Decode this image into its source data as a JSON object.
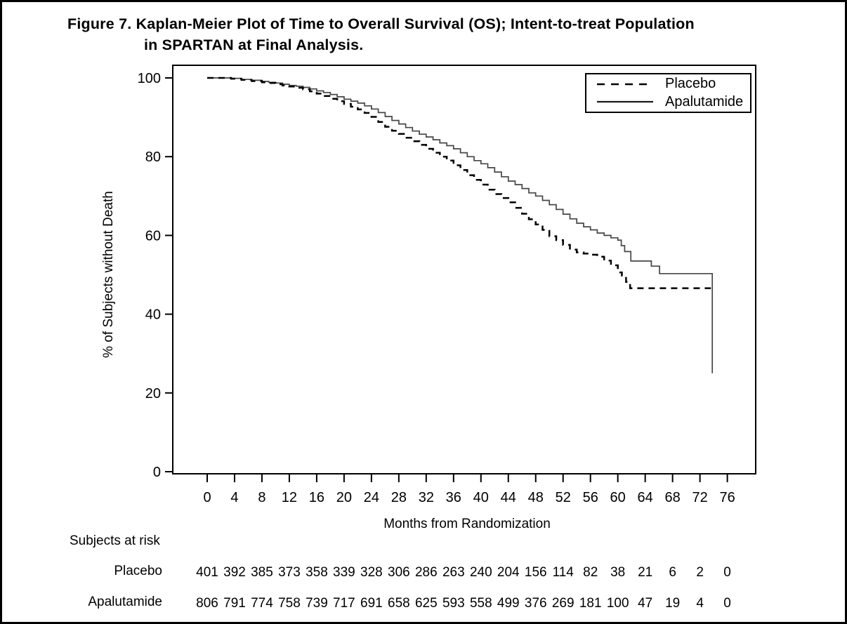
{
  "figure": {
    "title_line1": "Figure 7. Kaplan-Meier Plot of Time to Overall Survival (OS); Intent-to-treat Population",
    "title_line2": "in SPARTAN at Final Analysis."
  },
  "colors": {
    "background": "#ffffff",
    "frame": "#000000",
    "text": "#000000",
    "curve_apalutamide": "#464646",
    "curve_placebo": "#000000"
  },
  "chart_data": {
    "type": "line",
    "subtype": "kaplan-meier-step",
    "title": "Figure 7. Kaplan-Meier Plot of Time to Overall Survival (OS); Intent-to-treat Population in SPARTAN at Final Analysis.",
    "xlabel": "Months from Randomization",
    "ylabel": "% of Subjects without Death",
    "xlim": [
      0,
      76
    ],
    "ylim": [
      0,
      100
    ],
    "xticks": [
      0,
      4,
      8,
      12,
      16,
      20,
      24,
      28,
      32,
      36,
      40,
      44,
      48,
      52,
      56,
      60,
      64,
      68,
      72,
      76
    ],
    "yticks": [
      0,
      20,
      40,
      60,
      80,
      100
    ],
    "grid": false,
    "legend": {
      "position": "top-right",
      "entries": [
        {
          "label": "Placebo",
          "style": "dashed"
        },
        {
          "label": "Apalutamide",
          "style": "solid"
        }
      ]
    },
    "series": [
      {
        "name": "Apalutamide",
        "line_style": "solid",
        "points": [
          [
            0,
            100
          ],
          [
            3.5,
            99.9
          ],
          [
            5,
            99.6
          ],
          [
            6.5,
            99.4
          ],
          [
            8,
            99.1
          ],
          [
            9,
            98.9
          ],
          [
            10,
            98.7
          ],
          [
            11,
            98.4
          ],
          [
            12,
            98.1
          ],
          [
            13,
            97.9
          ],
          [
            14,
            97.6
          ],
          [
            15,
            97.2
          ],
          [
            16,
            96.7
          ],
          [
            17,
            96.3
          ],
          [
            18,
            95.8
          ],
          [
            19,
            95.2
          ],
          [
            20,
            94.6
          ],
          [
            21,
            94.1
          ],
          [
            22,
            93.6
          ],
          [
            23,
            92.9
          ],
          [
            24,
            92.1
          ],
          [
            25,
            91.2
          ],
          [
            26,
            90.2
          ],
          [
            27,
            89.2
          ],
          [
            28,
            88.3
          ],
          [
            29,
            87.4
          ],
          [
            30,
            86.5
          ],
          [
            31,
            85.7
          ],
          [
            32,
            85.0
          ],
          [
            33,
            84.3
          ],
          [
            34,
            83.5
          ],
          [
            35,
            82.8
          ],
          [
            36,
            82.0
          ],
          [
            37,
            81.0
          ],
          [
            38,
            80.0
          ],
          [
            39,
            79.0
          ],
          [
            40,
            78.2
          ],
          [
            41,
            77.2
          ],
          [
            42,
            76.1
          ],
          [
            43,
            74.9
          ],
          [
            44,
            73.8
          ],
          [
            45,
            72.9
          ],
          [
            46,
            71.9
          ],
          [
            47,
            70.8
          ],
          [
            48,
            70.0
          ],
          [
            49,
            68.9
          ],
          [
            50,
            67.8
          ],
          [
            51,
            66.6
          ],
          [
            52,
            65.4
          ],
          [
            53,
            64.2
          ],
          [
            54,
            63.1
          ],
          [
            55,
            62.2
          ],
          [
            56,
            61.4
          ],
          [
            57,
            60.6
          ],
          [
            58,
            60.0
          ],
          [
            59,
            59.4
          ],
          [
            60,
            58.8
          ],
          [
            60.5,
            57.4
          ],
          [
            61,
            55.9
          ],
          [
            61.9,
            53.5
          ],
          [
            64.9,
            52.2
          ],
          [
            66.1,
            50.3
          ],
          [
            73.8,
            25.0
          ]
        ]
      },
      {
        "name": "Placebo",
        "line_style": "dashed",
        "points": [
          [
            0,
            100
          ],
          [
            3.5,
            99.8
          ],
          [
            5,
            99.5
          ],
          [
            6.5,
            99.2
          ],
          [
            8,
            98.9
          ],
          [
            9,
            98.7
          ],
          [
            10,
            98.4
          ],
          [
            11,
            98.1
          ],
          [
            12,
            97.8
          ],
          [
            13,
            97.5
          ],
          [
            14,
            97.1
          ],
          [
            15,
            96.6
          ],
          [
            16,
            96.0
          ],
          [
            17,
            95.4
          ],
          [
            18,
            94.7
          ],
          [
            19,
            94.1
          ],
          [
            20,
            93.4
          ],
          [
            21,
            92.7
          ],
          [
            22,
            92.0
          ],
          [
            23,
            91.1
          ],
          [
            24,
            90.1
          ],
          [
            25,
            88.8
          ],
          [
            26,
            87.6
          ],
          [
            27,
            86.6
          ],
          [
            28,
            85.8
          ],
          [
            29,
            84.8
          ],
          [
            30,
            83.9
          ],
          [
            31,
            83.0
          ],
          [
            32,
            82.0
          ],
          [
            33,
            81.0
          ],
          [
            34,
            80.0
          ],
          [
            35,
            79.0
          ],
          [
            36,
            77.8
          ],
          [
            37,
            76.6
          ],
          [
            38,
            75.3
          ],
          [
            39,
            74.1
          ],
          [
            40,
            72.9
          ],
          [
            41,
            71.6
          ],
          [
            42,
            70.5
          ],
          [
            43,
            69.5
          ],
          [
            44,
            68.4
          ],
          [
            45,
            67.0
          ],
          [
            46,
            65.5
          ],
          [
            47,
            64.1
          ],
          [
            48,
            62.8
          ],
          [
            49,
            61.4
          ],
          [
            50,
            59.8
          ],
          [
            51,
            58.8
          ],
          [
            52,
            57.6
          ],
          [
            53,
            56.4
          ],
          [
            54,
            55.7
          ],
          [
            55,
            55.4
          ],
          [
            56,
            55.1
          ],
          [
            57,
            54.6
          ],
          [
            58,
            53.6
          ],
          [
            59,
            52.4
          ],
          [
            60,
            50.6
          ],
          [
            60.6,
            49.8
          ],
          [
            61.2,
            48.2
          ],
          [
            61.8,
            46.6
          ],
          [
            73.6,
            46.6
          ]
        ]
      }
    ],
    "at_risk_table": {
      "header": "Subjects at risk",
      "timepoints": [
        0,
        4,
        8,
        12,
        16,
        20,
        24,
        28,
        32,
        36,
        40,
        44,
        48,
        52,
        56,
        60,
        64,
        68,
        72,
        76
      ],
      "rows": [
        {
          "label": "Placebo",
          "counts": [
            401,
            392,
            385,
            373,
            358,
            339,
            328,
            306,
            286,
            263,
            240,
            204,
            156,
            114,
            82,
            38,
            21,
            6,
            2,
            0
          ]
        },
        {
          "label": "Apalutamide",
          "counts": [
            806,
            791,
            774,
            758,
            739,
            717,
            691,
            658,
            625,
            593,
            558,
            499,
            376,
            269,
            181,
            100,
            47,
            19,
            4,
            0
          ]
        }
      ]
    }
  }
}
